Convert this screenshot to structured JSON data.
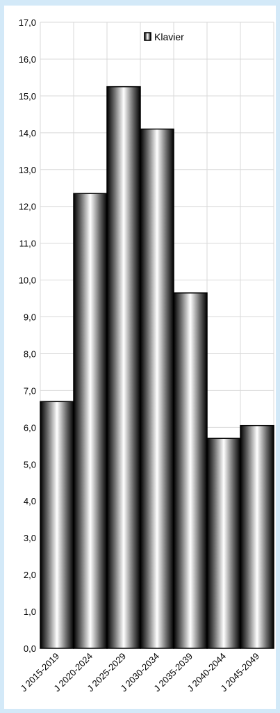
{
  "chart_data": {
    "type": "bar",
    "categories": [
      "J 2015-2019",
      "J 2020-2024",
      "J 2025-2029",
      "J 2030-2034",
      "J 2035-2039",
      "J 2040-2044",
      "J 2045-2049"
    ],
    "series": [
      {
        "name": "Klavier",
        "values": [
          6.7,
          12.35,
          15.25,
          14.1,
          9.65,
          5.7,
          6.05
        ]
      }
    ],
    "title": "",
    "xlabel": "",
    "ylabel": "",
    "ylim": [
      0,
      17
    ],
    "y_ticks": [
      "0,0",
      "1,0",
      "2,0",
      "3,0",
      "4,0",
      "5,0",
      "6,0",
      "7,0",
      "8,0",
      "9,0",
      "10,0",
      "11,0",
      "12,0",
      "13,0",
      "14,0",
      "15,0",
      "16,0",
      "17,0"
    ],
    "grid": true,
    "legend": {
      "position": "top-right",
      "entries": [
        "Klavier"
      ]
    },
    "colors": {
      "background": "#d3e9f8",
      "plot_background": "#ffffff",
      "gridline": "#d9d9d9",
      "bar_dark": "#000000",
      "bar_light": "#ffffff"
    }
  }
}
